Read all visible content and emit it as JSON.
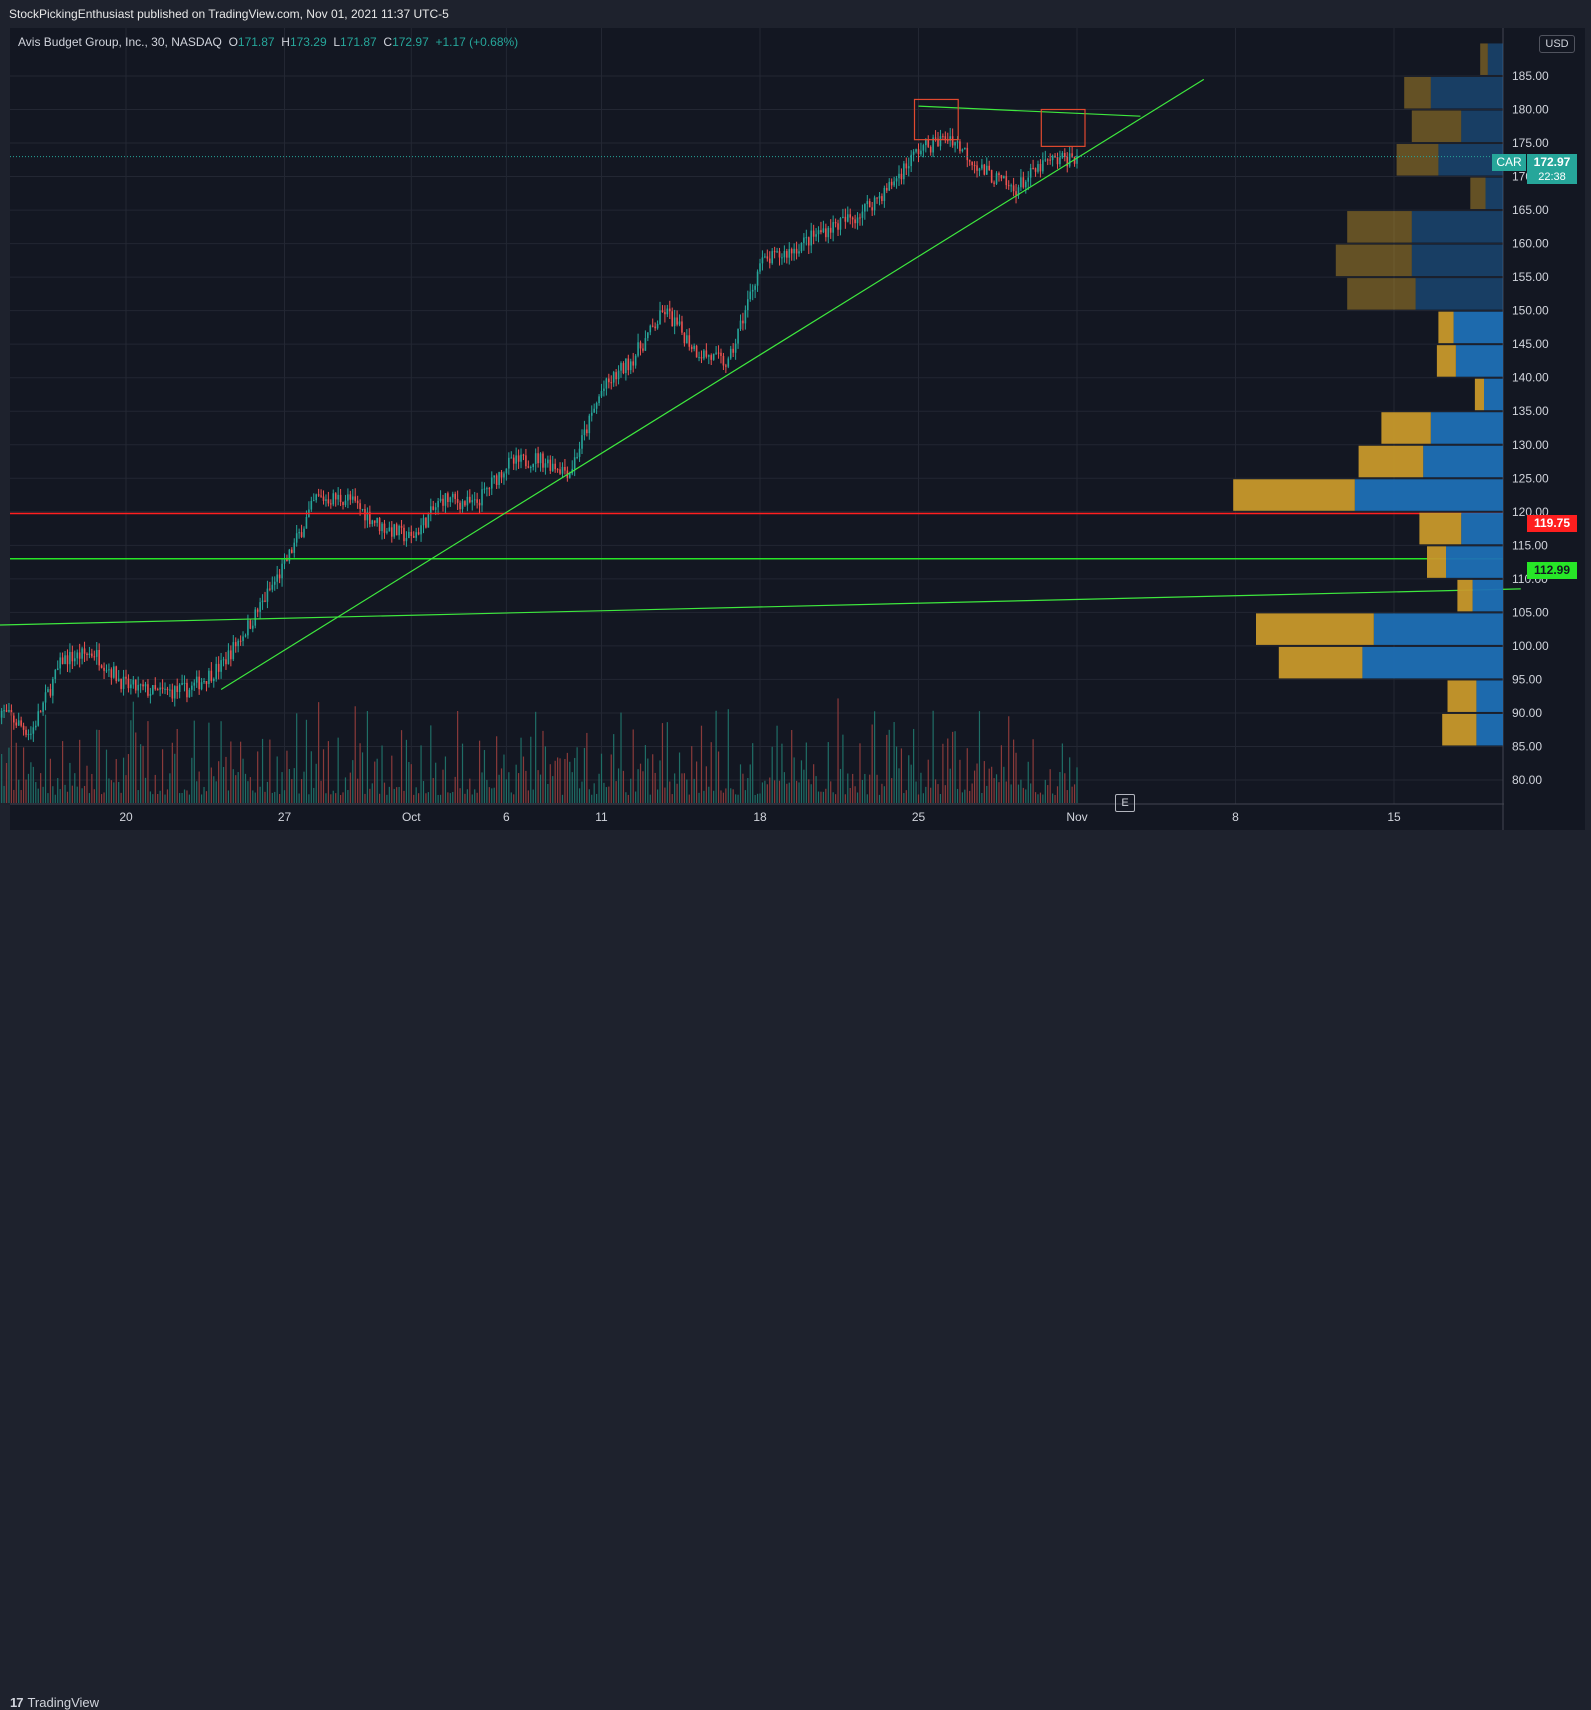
{
  "header": {
    "publisher": "StockPickingEnthusiast published on TradingView.com, Nov 01, 2021 11:37 UTC-5"
  },
  "legend": {
    "symbol": "Avis Budget Group, Inc., 30, NASDAQ",
    "open_label": "O",
    "open": "171.87",
    "high_label": "H",
    "high": "173.29",
    "low_label": "L",
    "low": "171.87",
    "close_label": "C",
    "close": "172.97",
    "change": "+1.17 (+0.68%)"
  },
  "currency": "USD",
  "ticker_tag": "CAR",
  "price_tag": "172.97",
  "countdown": "22:38",
  "red_level_label": "119.75",
  "green_level_label": "112.99",
  "earnings_marker": "E",
  "footer": {
    "brand": "TradingView"
  },
  "colors": {
    "background": "#131722",
    "up": "#26a69a",
    "down": "#ef5350",
    "trendline": "#3ee83e",
    "resistance": "#ff1f1f",
    "support": "#27e627",
    "vp_up": "#1e6fb5",
    "vp_down": "#c7982b"
  },
  "chart_data": {
    "type": "candlestick",
    "ylim": [
      78,
      190
    ],
    "y_ticks": [
      "80.00",
      "85.00",
      "90.00",
      "95.00",
      "100.00",
      "105.00",
      "110.00",
      "115.00",
      "120.00",
      "125.00",
      "130.00",
      "135.00",
      "140.00",
      "145.00",
      "150.00",
      "155.00",
      "160.00",
      "165.00",
      "170.00",
      "175.00",
      "180.00",
      "185.00"
    ],
    "x_ticks": [
      "20",
      "27",
      "Oct",
      "6",
      "11",
      "18",
      "25",
      "Nov",
      "8",
      "15"
    ],
    "x_tick_dates": [
      "2021-09-20",
      "2021-09-27",
      "2021-10-01",
      "2021-10-06",
      "2021-10-11",
      "2021-10-18",
      "2021-10-25",
      "2021-11-01",
      "2021-11-08",
      "2021-11-15"
    ],
    "price_path": [
      [
        "2021-09-14",
        90.5
      ],
      [
        "2021-09-15",
        87
      ],
      [
        "2021-09-16",
        98
      ],
      [
        "2021-09-17",
        99
      ],
      [
        "2021-09-20",
        94
      ],
      [
        "2021-09-21",
        93
      ],
      [
        "2021-09-22",
        93.5
      ],
      [
        "2021-09-23",
        97
      ],
      [
        "2021-09-24",
        104
      ],
      [
        "2021-09-27",
        112
      ],
      [
        "2021-09-28",
        122
      ],
      [
        "2021-09-29",
        122
      ],
      [
        "2021-09-30",
        118
      ],
      [
        "2021-10-01",
        116
      ],
      [
        "2021-10-04",
        122
      ],
      [
        "2021-10-05",
        121
      ],
      [
        "2021-10-06",
        127
      ],
      [
        "2021-10-07",
        128
      ],
      [
        "2021-10-08",
        126
      ],
      [
        "2021-10-11",
        138
      ],
      [
        "2021-10-12",
        143
      ],
      [
        "2021-10-13",
        150
      ],
      [
        "2021-10-14",
        144
      ],
      [
        "2021-10-15",
        142
      ],
      [
        "2021-10-18",
        157
      ],
      [
        "2021-10-19",
        159
      ],
      [
        "2021-10-20",
        162
      ],
      [
        "2021-10-21",
        164
      ],
      [
        "2021-10-22",
        168
      ],
      [
        "2021-10-25",
        174
      ],
      [
        "2021-10-26",
        176
      ],
      [
        "2021-10-27",
        171
      ],
      [
        "2021-10-28",
        168
      ],
      [
        "2021-10-29",
        172
      ],
      [
        "2021-11-01",
        172.97
      ]
    ],
    "horizontal_levels": [
      {
        "price": 119.75,
        "color": "red"
      },
      {
        "price": 112.99,
        "color": "green"
      }
    ],
    "trendlines": [
      {
        "from": [
          "2021-09-23",
          93.5
        ],
        "to": [
          "2021-11-07",
          184.5
        ]
      },
      {
        "from": [
          "2021-09-13",
          103
        ],
        "to": [
          "2021-11-20",
          108.5
        ]
      },
      {
        "from": [
          "2021-10-25",
          180.5
        ],
        "to": [
          "2021-11-03",
          179
        ]
      }
    ],
    "highlight_boxes": [
      {
        "x": [
          "2021-10-25",
          "2021-10-26"
        ],
        "y": [
          175.5,
          181.5
        ]
      },
      {
        "x": [
          "2021-10-29",
          "2021-11-01"
        ],
        "y": [
          174.5,
          180
        ]
      }
    ],
    "volume_profile": {
      "bin_size": 5,
      "bins": [
        {
          "from": 85,
          "up": 3.5,
          "down": 4.5
        },
        {
          "from": 90,
          "up": 3.5,
          "down": 3.8
        },
        {
          "from": 95,
          "up": 18.5,
          "down": 11
        },
        {
          "from": 100,
          "up": 17,
          "down": 15.5
        },
        {
          "from": 105,
          "up": 4,
          "down": 2
        },
        {
          "from": 110,
          "up": 7.5,
          "down": 2.5
        },
        {
          "from": 115,
          "up": 5.5,
          "down": 5.5
        },
        {
          "from": 120,
          "up": 19.5,
          "down": 16
        },
        {
          "from": 125,
          "up": 10.5,
          "down": 8.5
        },
        {
          "from": 130,
          "up": 9.5,
          "down": 6.5
        },
        {
          "from": 135,
          "up": 2.5,
          "down": 1.2
        },
        {
          "from": 140,
          "up": 6.2,
          "down": 2.5
        },
        {
          "from": 145,
          "up": 6.5,
          "down": 2
        },
        {
          "from": 150,
          "up": 11.5,
          "down": 9
        },
        {
          "from": 155,
          "up": 12,
          "down": 10
        },
        {
          "from": 160,
          "up": 12,
          "down": 8.5
        },
        {
          "from": 165,
          "up": 2.3,
          "down": 2
        },
        {
          "from": 170,
          "up": 8.5,
          "down": 5.5
        },
        {
          "from": 175,
          "up": 5.5,
          "down": 6.5
        },
        {
          "from": 180,
          "up": 9.5,
          "down": 3.5
        },
        {
          "from": 185,
          "up": 2,
          "down": 1
        }
      ]
    }
  }
}
